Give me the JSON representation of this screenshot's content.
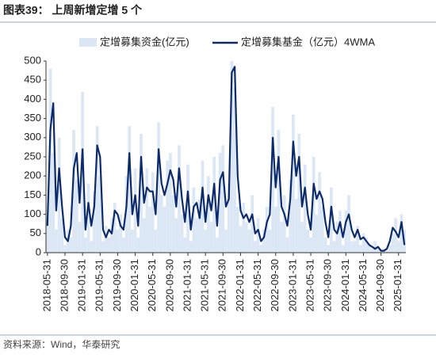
{
  "chart_data": {
    "type": "bar_line",
    "title": "图表39：  上周新增定增 5 个",
    "source": "资料来源：Wind，华泰研究",
    "categories": [
      "2018-05-31",
      null,
      null,
      null,
      null,
      null,
      "2018-09-30",
      null,
      null,
      null,
      null,
      null,
      "2019-01-31",
      null,
      null,
      null,
      null,
      null,
      "2019-05-31",
      null,
      null,
      null,
      null,
      null,
      "2019-09-30",
      null,
      null,
      null,
      null,
      null,
      "2020-01-31",
      null,
      null,
      null,
      null,
      null,
      "2020-05-31",
      null,
      null,
      null,
      null,
      null,
      "2020-09-30",
      null,
      null,
      null,
      null,
      null,
      "2021-01-31",
      null,
      null,
      null,
      null,
      null,
      "2021-05-31",
      null,
      null,
      null,
      null,
      null,
      "2021-09-30",
      null,
      null,
      null,
      null,
      null,
      "2022-01-31",
      null,
      null,
      null,
      null,
      null,
      "2022-05-31",
      null,
      null,
      null,
      null,
      null,
      "2022-09-30",
      null,
      null,
      null,
      null,
      null,
      "2023-01-31",
      null,
      null,
      null,
      null,
      null,
      "2023-05-31",
      null,
      null,
      null,
      null,
      null,
      "2023-09-30",
      null,
      null,
      null,
      null,
      null,
      "2024-01-31",
      null,
      null,
      null,
      null,
      null,
      "2024-05-31",
      null,
      null,
      null,
      null,
      null,
      "2024-09-30",
      null,
      null,
      null,
      null,
      null,
      "2025-01-31",
      null,
      null
    ],
    "series": [
      {
        "name": "定增募集资金(亿元)",
        "color": "#dbe7f4",
        "values": [
          90,
          480,
          260,
          60,
          300,
          90,
          20,
          60,
          40,
          320,
          190,
          80,
          420,
          40,
          180,
          30,
          160,
          330,
          200,
          30,
          70,
          40,
          90,
          130,
          60,
          100,
          40,
          200,
          330,
          60,
          220,
          40,
          310,
          90,
          220,
          120,
          210,
          60,
          340,
          150,
          120,
          240,
          260,
          150,
          90,
          280,
          100,
          40,
          230,
          30,
          170,
          90,
          140,
          240,
          60,
          200,
          80,
          250,
          40,
          260,
          280,
          60,
          180,
          500,
          430,
          120,
          70,
          130,
          80,
          60,
          150,
          30,
          90,
          20,
          60,
          120,
          60,
          380,
          120,
          320,
          80,
          150,
          40,
          190,
          360,
          140,
          310,
          80,
          230,
          60,
          40,
          250,
          100,
          210,
          120,
          40,
          20,
          170,
          30,
          80,
          110,
          20,
          110,
          150,
          30,
          30,
          70,
          20,
          50,
          40,
          20,
          10,
          30,
          10,
          5,
          10,
          5,
          20,
          50,
          90,
          30,
          100,
          60
        ]
      },
      {
        "name": "定增募集基金（亿元）4WMA",
        "color": "#0d2b6b",
        "values": [
          70,
          320,
          390,
          110,
          220,
          120,
          40,
          30,
          70,
          220,
          260,
          130,
          270,
          60,
          130,
          70,
          120,
          280,
          250,
          60,
          40,
          60,
          50,
          110,
          100,
          70,
          60,
          120,
          260,
          100,
          150,
          70,
          250,
          130,
          170,
          160,
          160,
          100,
          270,
          180,
          150,
          180,
          215,
          190,
          120,
          220,
          140,
          80,
          160,
          60,
          120,
          130,
          90,
          170,
          80,
          150,
          110,
          180,
          70,
          190,
          210,
          120,
          140,
          470,
          485,
          200,
          110,
          90,
          100,
          80,
          100,
          50,
          60,
          30,
          40,
          80,
          100,
          300,
          170,
          250,
          120,
          100,
          70,
          140,
          290,
          200,
          250,
          120,
          170,
          100,
          60,
          180,
          140,
          160,
          140,
          80,
          40,
          120,
          60,
          50,
          80,
          40,
          80,
          100,
          60,
          40,
          60,
          35,
          40,
          30,
          20,
          15,
          10,
          15,
          5,
          5,
          10,
          30,
          65,
          55,
          40,
          80,
          20
        ]
      }
    ],
    "ylim": [
      0,
      500
    ],
    "yticks": [
      0,
      50,
      100,
      150,
      200,
      250,
      300,
      350,
      400,
      450,
      500
    ]
  }
}
